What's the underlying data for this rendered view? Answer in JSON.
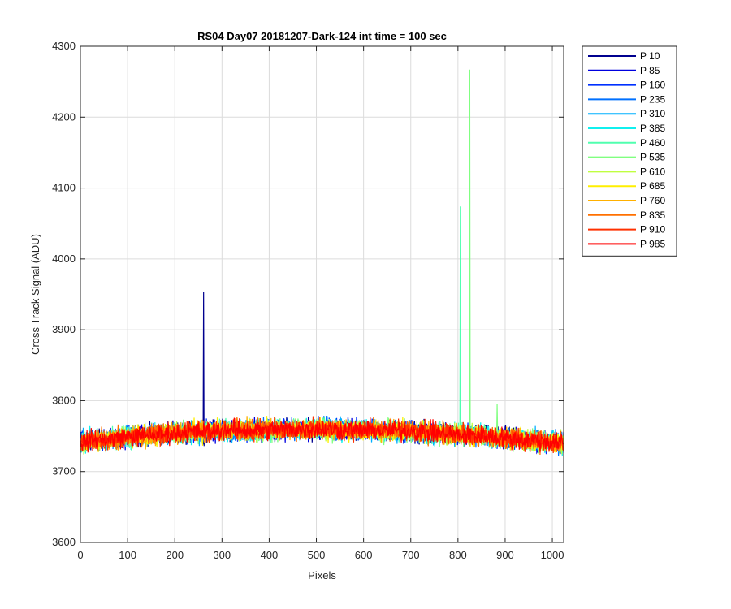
{
  "chart_data": {
    "type": "line",
    "title": "RS04 Day07 20181207-Dark-124 int time = 100 sec",
    "xlabel": "Pixels",
    "ylabel": "Cross Track Signal (ADU)",
    "xlim": [
      0,
      1024
    ],
    "ylim": [
      3600,
      4300
    ],
    "xticks": [
      0,
      100,
      200,
      300,
      400,
      500,
      600,
      700,
      800,
      900,
      1000
    ],
    "yticks": [
      3600,
      3700,
      3800,
      3900,
      4000,
      4100,
      4200,
      4300
    ],
    "grid": true,
    "legend_position": "outside-top-right",
    "x_range": [
      0,
      1024
    ],
    "baseline_profile": [
      [
        0,
        3742
      ],
      [
        150,
        3752
      ],
      [
        300,
        3758
      ],
      [
        500,
        3760
      ],
      [
        700,
        3757
      ],
      [
        850,
        3750
      ],
      [
        1024,
        3740
      ]
    ],
    "noise_amplitude": 16,
    "series": [
      {
        "name": "P 10",
        "color": "#00008F",
        "spikes": [
          [
            261,
            3953
          ]
        ]
      },
      {
        "name": "P 85",
        "color": "#0000DF",
        "spikes": []
      },
      {
        "name": "P 160",
        "color": "#0030FF",
        "spikes": []
      },
      {
        "name": "P 235",
        "color": "#0070FF",
        "spikes": []
      },
      {
        "name": "P 310",
        "color": "#00B0FF",
        "spikes": []
      },
      {
        "name": "P 385",
        "color": "#10F0EF",
        "spikes": []
      },
      {
        "name": "P 460",
        "color": "#50FFAF",
        "spikes": [
          [
            805,
            4074
          ]
        ]
      },
      {
        "name": "P 535",
        "color": "#80FF80",
        "spikes": [
          [
            825,
            4267
          ],
          [
            883,
            3795
          ]
        ]
      },
      {
        "name": "P 610",
        "color": "#C0FF40",
        "spikes": []
      },
      {
        "name": "P 685",
        "color": "#FFEF00",
        "spikes": []
      },
      {
        "name": "P 760",
        "color": "#FFB000",
        "spikes": []
      },
      {
        "name": "P 835",
        "color": "#FF7000",
        "spikes": []
      },
      {
        "name": "P 910",
        "color": "#FF3000",
        "spikes": []
      },
      {
        "name": "P 985",
        "color": "#FF0000",
        "spikes": []
      }
    ]
  }
}
